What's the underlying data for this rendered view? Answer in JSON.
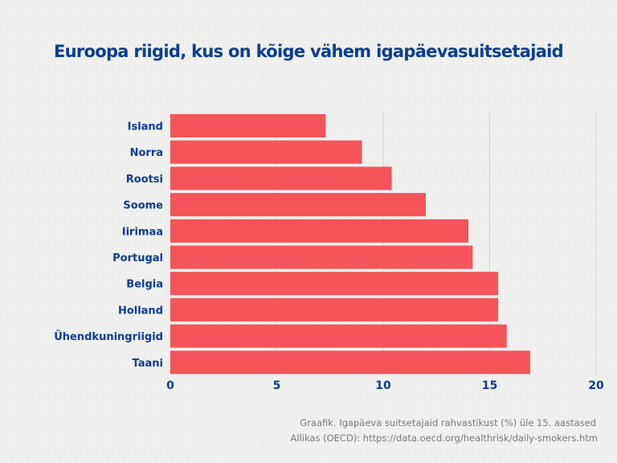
{
  "chart_data": {
    "type": "bar",
    "orientation": "horizontal",
    "title": "Euroopa riigid, kus on kõige vähem igapäevasuitsetajaid",
    "categories": [
      "Island",
      "Norra",
      "Rootsi",
      "Soome",
      "Iirimaa",
      "Portugal",
      "Belgia",
      "Holland",
      "Ühendkuningriigid",
      "Taani"
    ],
    "values": [
      7.3,
      9.0,
      10.4,
      12.0,
      14.0,
      14.2,
      15.4,
      15.4,
      15.8,
      16.9
    ],
    "xlim": [
      0,
      20
    ],
    "xticks": [
      0,
      5,
      10,
      15,
      20
    ],
    "xlabel": "",
    "ylabel": "",
    "grid": true,
    "bar_color": "#f4545a",
    "grid_color": "#d6d6d6",
    "label_color": "#0b3d91"
  },
  "caption": {
    "line1": "Graafik. Igapäeva suitsetajaid rahvastikust (%) üle 15. aastased",
    "line2": "Allikas (OECD): https://data.oecd.org/healthrisk/daily-smokers.htm"
  }
}
